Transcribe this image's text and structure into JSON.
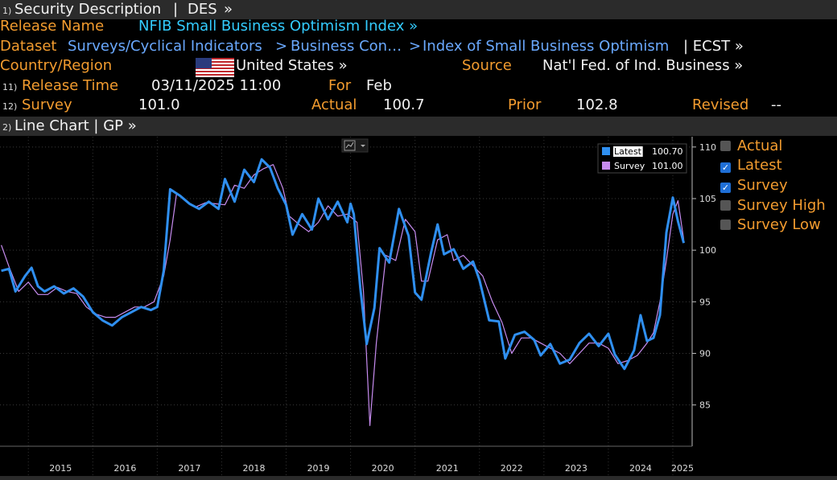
{
  "header": {
    "title": "Security Description",
    "sep": "|",
    "code": "DES",
    "more": "»"
  },
  "release": {
    "label": "Release Name",
    "value": "NFIB Small Business Optimism Index »"
  },
  "dataset": {
    "label": "Dataset",
    "path": [
      "Surveys/Cyclical Indicators",
      "Business Con…",
      "Index of Small Business Optimism"
    ],
    "ticker": "| ECST »"
  },
  "country": {
    "label": "Country/Region",
    "value": "United States »",
    "source_label": "Source",
    "source_value": "Nat'l Fed. of Ind. Business »"
  },
  "release_time": {
    "num": "11)",
    "label": "Release Time",
    "value": "03/11/2025 11:00",
    "for_label": "For",
    "for_value": "Feb"
  },
  "survey": {
    "num": "12)",
    "label": "Survey",
    "value": "101.0",
    "actual_label": "Actual",
    "actual_value": "100.7",
    "prior_label": "Prior",
    "prior_value": "102.8",
    "revised_label": "Revised",
    "revised_value": "--"
  },
  "chart_header": {
    "num": "2)",
    "title": "Line Chart | GP »"
  },
  "right_legend": [
    {
      "label": "Actual",
      "checked": false
    },
    {
      "label": "Latest",
      "checked": true
    },
    {
      "label": "Survey",
      "checked": true
    },
    {
      "label": "Survey High",
      "checked": false
    },
    {
      "label": "Survey Low",
      "checked": false
    }
  ],
  "colors": {
    "latest": "#2f8ff0",
    "survey": "#c78cf0",
    "orange": "#f39c2f",
    "cyan": "#33ccff"
  },
  "icons": {
    "chart_type": "line-chart-icon",
    "flag": "us-flag-icon"
  },
  "chart_data": {
    "type": "line",
    "x_ticks": [
      "2015",
      "2016",
      "2017",
      "2018",
      "2019",
      "2020",
      "2021",
      "2022",
      "2023",
      "2024",
      "2025"
    ],
    "y_ticks": [
      85,
      90,
      95,
      100,
      105,
      110
    ],
    "ylim": [
      81,
      111
    ],
    "xlim": [
      2014.56,
      2025.3
    ],
    "grid": true,
    "legend_position": "top-right",
    "series": [
      {
        "name": "Latest",
        "last_label": "100.70",
        "points": [
          [
            2014.58,
            98.0
          ],
          [
            2014.7,
            98.2
          ],
          [
            2014.8,
            96.0
          ],
          [
            2014.95,
            97.5
          ],
          [
            2015.05,
            98.3
          ],
          [
            2015.15,
            96.5
          ],
          [
            2015.25,
            96.0
          ],
          [
            2015.4,
            96.5
          ],
          [
            2015.55,
            95.8
          ],
          [
            2015.7,
            96.3
          ],
          [
            2015.85,
            95.5
          ],
          [
            2016.0,
            94.0
          ],
          [
            2016.15,
            93.2
          ],
          [
            2016.3,
            92.7
          ],
          [
            2016.45,
            93.5
          ],
          [
            2016.6,
            94.0
          ],
          [
            2016.75,
            94.5
          ],
          [
            2016.9,
            94.2
          ],
          [
            2017.0,
            94.5
          ],
          [
            2017.1,
            98.0
          ],
          [
            2017.2,
            105.9
          ],
          [
            2017.35,
            105.3
          ],
          [
            2017.5,
            104.5
          ],
          [
            2017.65,
            104.0
          ],
          [
            2017.8,
            104.7
          ],
          [
            2017.95,
            104.0
          ],
          [
            2018.05,
            106.9
          ],
          [
            2018.2,
            104.7
          ],
          [
            2018.35,
            107.8
          ],
          [
            2018.5,
            106.6
          ],
          [
            2018.62,
            108.8
          ],
          [
            2018.75,
            108.0
          ],
          [
            2018.87,
            106.0
          ],
          [
            2019.0,
            104.4
          ],
          [
            2019.1,
            101.5
          ],
          [
            2019.25,
            103.5
          ],
          [
            2019.4,
            102.0
          ],
          [
            2019.5,
            105.0
          ],
          [
            2019.65,
            103.0
          ],
          [
            2019.8,
            104.7
          ],
          [
            2019.95,
            102.7
          ],
          [
            2020.0,
            104.5
          ],
          [
            2020.05,
            103.5
          ],
          [
            2020.15,
            96.4
          ],
          [
            2020.25,
            90.9
          ],
          [
            2020.37,
            94.4
          ],
          [
            2020.45,
            100.2
          ],
          [
            2020.6,
            98.8
          ],
          [
            2020.75,
            104.0
          ],
          [
            2020.9,
            101.4
          ],
          [
            2021.0,
            95.9
          ],
          [
            2021.1,
            95.2
          ],
          [
            2021.25,
            99.8
          ],
          [
            2021.35,
            102.5
          ],
          [
            2021.45,
            99.6
          ],
          [
            2021.6,
            100.1
          ],
          [
            2021.75,
            98.2
          ],
          [
            2021.9,
            98.9
          ],
          [
            2022.0,
            97.1
          ],
          [
            2022.15,
            93.2
          ],
          [
            2022.3,
            93.1
          ],
          [
            2022.4,
            89.5
          ],
          [
            2022.55,
            91.8
          ],
          [
            2022.7,
            92.1
          ],
          [
            2022.85,
            91.3
          ],
          [
            2022.95,
            89.8
          ],
          [
            2023.1,
            90.9
          ],
          [
            2023.25,
            89.0
          ],
          [
            2023.4,
            89.4
          ],
          [
            2023.55,
            91.0
          ],
          [
            2023.7,
            91.9
          ],
          [
            2023.85,
            90.7
          ],
          [
            2024.0,
            91.9
          ],
          [
            2024.1,
            89.9
          ],
          [
            2024.25,
            88.5
          ],
          [
            2024.4,
            90.3
          ],
          [
            2024.5,
            93.7
          ],
          [
            2024.6,
            91.2
          ],
          [
            2024.7,
            91.5
          ],
          [
            2024.8,
            93.7
          ],
          [
            2024.9,
            101.7
          ],
          [
            2025.0,
            105.1
          ],
          [
            2025.08,
            102.8
          ],
          [
            2025.17,
            100.7
          ]
        ]
      },
      {
        "name": "Survey",
        "last_label": "101.00",
        "points": [
          [
            2014.58,
            100.5
          ],
          [
            2014.7,
            98.4
          ],
          [
            2014.85,
            96.0
          ],
          [
            2015.0,
            96.9
          ],
          [
            2015.15,
            95.7
          ],
          [
            2015.3,
            95.7
          ],
          [
            2015.45,
            96.4
          ],
          [
            2015.6,
            96.0
          ],
          [
            2015.75,
            95.8
          ],
          [
            2015.9,
            94.5
          ],
          [
            2016.05,
            93.8
          ],
          [
            2016.2,
            93.5
          ],
          [
            2016.35,
            93.5
          ],
          [
            2016.5,
            94.0
          ],
          [
            2016.65,
            94.5
          ],
          [
            2016.8,
            94.5
          ],
          [
            2016.95,
            95.0
          ],
          [
            2017.1,
            97.5
          ],
          [
            2017.2,
            101.0
          ],
          [
            2017.3,
            105.5
          ],
          [
            2017.45,
            104.7
          ],
          [
            2017.6,
            104.2
          ],
          [
            2017.75,
            104.6
          ],
          [
            2017.9,
            104.5
          ],
          [
            2018.05,
            104.4
          ],
          [
            2018.2,
            106.3
          ],
          [
            2018.35,
            106.0
          ],
          [
            2018.5,
            107.3
          ],
          [
            2018.65,
            107.9
          ],
          [
            2018.8,
            108.3
          ],
          [
            2018.95,
            106.0
          ],
          [
            2019.05,
            103.3
          ],
          [
            2019.2,
            102.5
          ],
          [
            2019.35,
            101.8
          ],
          [
            2019.5,
            102.7
          ],
          [
            2019.65,
            104.3
          ],
          [
            2019.8,
            103.3
          ],
          [
            2019.95,
            103.5
          ],
          [
            2020.1,
            102.7
          ],
          [
            2020.2,
            96.0
          ],
          [
            2020.3,
            83.0
          ],
          [
            2020.4,
            91.0
          ],
          [
            2020.55,
            99.5
          ],
          [
            2020.7,
            99.0
          ],
          [
            2020.85,
            103.0
          ],
          [
            2021.0,
            101.8
          ],
          [
            2021.1,
            97.0
          ],
          [
            2021.2,
            97.0
          ],
          [
            2021.35,
            101.0
          ],
          [
            2021.5,
            101.5
          ],
          [
            2021.6,
            99.0
          ],
          [
            2021.75,
            99.5
          ],
          [
            2021.9,
            98.5
          ],
          [
            2022.05,
            97.5
          ],
          [
            2022.2,
            95.0
          ],
          [
            2022.35,
            93.0
          ],
          [
            2022.5,
            90.0
          ],
          [
            2022.65,
            91.5
          ],
          [
            2022.8,
            91.5
          ],
          [
            2022.95,
            91.0
          ],
          [
            2023.1,
            90.5
          ],
          [
            2023.25,
            90.0
          ],
          [
            2023.4,
            89.0
          ],
          [
            2023.55,
            90.0
          ],
          [
            2023.7,
            91.0
          ],
          [
            2023.85,
            91.0
          ],
          [
            2024.0,
            90.5
          ],
          [
            2024.15,
            89.0
          ],
          [
            2024.3,
            89.3
          ],
          [
            2024.45,
            89.8
          ],
          [
            2024.6,
            91.0
          ],
          [
            2024.7,
            92.0
          ],
          [
            2024.8,
            95.0
          ],
          [
            2024.9,
            99.0
          ],
          [
            2025.0,
            103.5
          ],
          [
            2025.08,
            104.8
          ],
          [
            2025.17,
            101.0
          ]
        ]
      }
    ]
  }
}
